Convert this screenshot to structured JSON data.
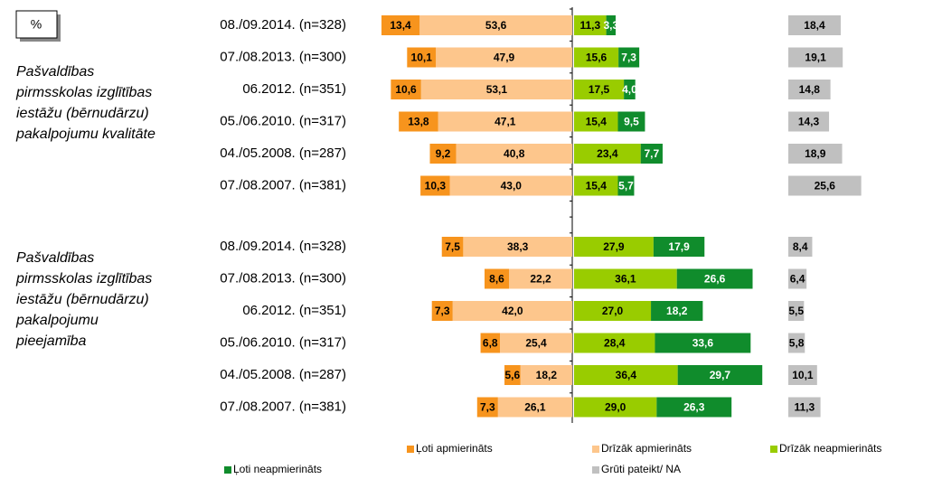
{
  "chart_data": {
    "type": "diverging_bar",
    "unit_label": "%",
    "groups": [
      {
        "title": "Pašvaldības pirmsskolas izglītības iestāžu (bērnudārzu) pakalpojumu kvalitāte"
      },
      {
        "title": "Pašvaldības pirmsskolas izglītības iestāžu (bērnudārzu) pakalpojumu pieejamība"
      }
    ],
    "categories": [
      "08./09.2014. (n=328)",
      "07./08.2013. (n=300)",
      "06.2012. (n=351)",
      "05./06.2010. (n=317)",
      "04./05.2008. (n=287)",
      "07./08.2007. (n=381)",
      "08./09.2014. (n=328)",
      "07./08.2013. (n=300)",
      "06.2012. (n=351)",
      "05./06.2010. (n=317)",
      "04./05.2008. (n=287)",
      "07./08.2007. (n=381)"
    ],
    "series": [
      {
        "name": "Ļoti apmierināts",
        "color": "#f7941d",
        "values": [
          13.4,
          10.1,
          10.6,
          13.8,
          9.2,
          10.3,
          7.5,
          8.6,
          7.3,
          6.8,
          5.6,
          7.3
        ],
        "value_labels": [
          "13,4",
          "10,1",
          "10,6",
          "13,8",
          "9,2",
          "10,3",
          "7,5",
          "8,6",
          "7,3",
          "6,8",
          "5,6",
          "7,3"
        ]
      },
      {
        "name": "Drīzāk apmierināts",
        "color": "#fdc68c",
        "values": [
          53.6,
          47.9,
          53.1,
          47.1,
          40.8,
          43.0,
          38.3,
          22.2,
          42.0,
          25.4,
          18.2,
          26.1
        ],
        "value_labels": [
          "53,6",
          "47,9",
          "53,1",
          "47,1",
          "40,8",
          "43,0",
          "38,3",
          "22,2",
          "42,0",
          "25,4",
          "18,2",
          "26,1"
        ]
      },
      {
        "name": "Drīzāk neapmierināts",
        "color": "#99cc00",
        "values": [
          11.3,
          15.6,
          17.5,
          15.4,
          23.4,
          15.4,
          27.9,
          36.1,
          27.0,
          28.4,
          36.4,
          29.0
        ],
        "value_labels": [
          "11,3",
          "15,6",
          "17,5",
          "15,4",
          "23,4",
          "15,4",
          "27,9",
          "36,1",
          "27,0",
          "28,4",
          "36,4",
          "29,0"
        ]
      },
      {
        "name": "Ļoti neapmierināts",
        "color": "#108c2c",
        "values": [
          3.3,
          7.3,
          4.0,
          9.5,
          7.7,
          5.7,
          17.9,
          26.6,
          18.2,
          33.6,
          29.7,
          26.3
        ],
        "value_labels": [
          "3,3",
          "7,3",
          "4,0",
          "9,5",
          "7,7",
          "5,7",
          "17,9",
          "26,6",
          "18,2",
          "33,6",
          "29,7",
          "26,3"
        ]
      },
      {
        "name": "Grūti pateikt/ NA",
        "color": "#c0c0c0",
        "values": [
          18.4,
          19.1,
          14.8,
          14.3,
          18.9,
          25.6,
          8.4,
          6.4,
          5.5,
          5.8,
          10.1,
          11.3
        ],
        "value_labels": [
          "18,4",
          "19,1",
          "14,8",
          "14,3",
          "18,9",
          "25,6",
          "8,4",
          "6,4",
          "5,5",
          "5,8",
          "10,1",
          "11,3"
        ]
      }
    ]
  }
}
